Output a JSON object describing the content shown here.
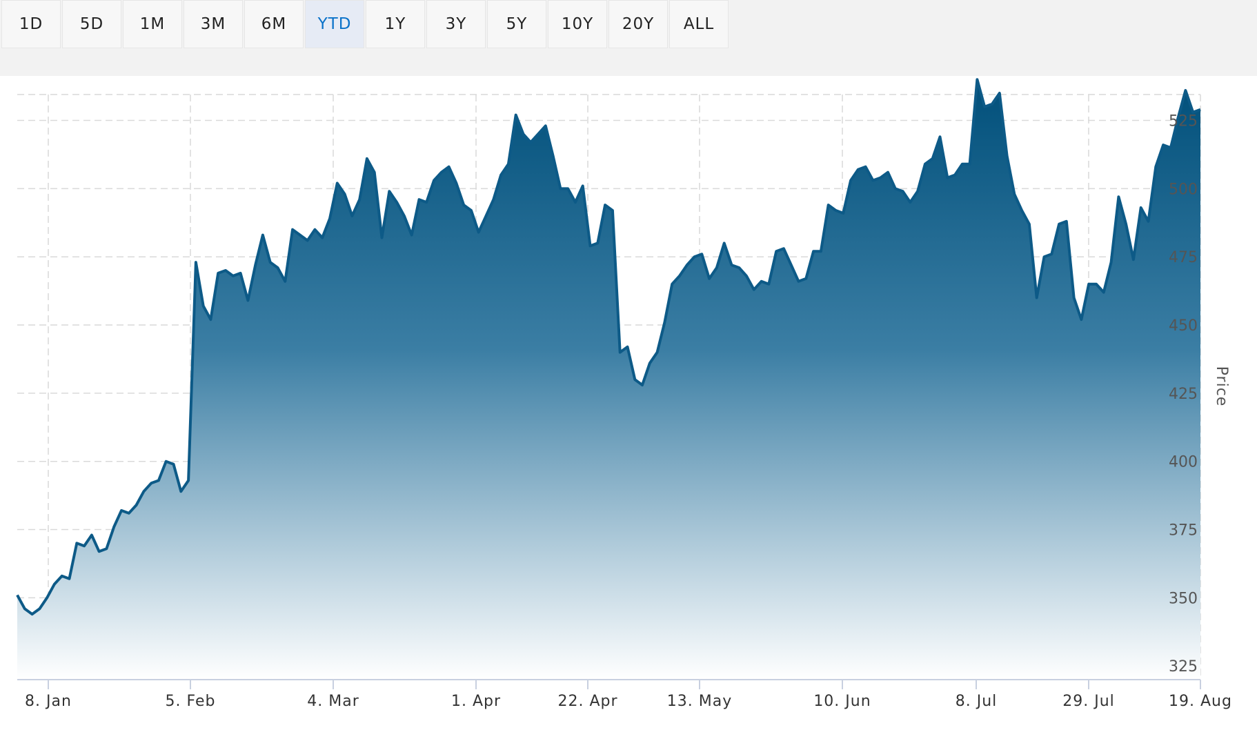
{
  "range_selector": {
    "buttons": [
      "1D",
      "5D",
      "1M",
      "3M",
      "6M",
      "YTD",
      "1Y",
      "3Y",
      "5Y",
      "10Y",
      "20Y",
      "ALL"
    ],
    "selected": "YTD"
  },
  "colors": {
    "line": "#0d5a87",
    "fill_top": "#004f7a",
    "fill_bottom": "#ffffff",
    "selected_text": "#0a72c9",
    "selected_bg": "#e6ebf5"
  },
  "chart_data": {
    "type": "area",
    "ylabel": "Price",
    "ylim": [
      320,
      535
    ],
    "y_ticks": [
      325,
      350,
      375,
      400,
      425,
      450,
      475,
      500,
      525
    ],
    "x_ticks": [
      "8. Jan",
      "5. Feb",
      "4. Mar",
      "1. Apr",
      "22. Apr",
      "13. May",
      "10. Jun",
      "8. Jul",
      "29. Jul",
      "19. Aug"
    ],
    "grid": true,
    "values": [
      351,
      346,
      344,
      346,
      350,
      355,
      358,
      357,
      370,
      369,
      373,
      367,
      368,
      376,
      382,
      381,
      384,
      389,
      392,
      393,
      400,
      399,
      389,
      393,
      473,
      457,
      452,
      469,
      470,
      468,
      469,
      459,
      472,
      483,
      473,
      471,
      466,
      485,
      483,
      481,
      485,
      482,
      489,
      502,
      498,
      490,
      496,
      511,
      506,
      482,
      499,
      495,
      490,
      483,
      496,
      495,
      503,
      506,
      508,
      502,
      494,
      492,
      484,
      490,
      496,
      505,
      509,
      527,
      520,
      517,
      520,
      523,
      512,
      500,
      500,
      495,
      501,
      479,
      480,
      494,
      492,
      440,
      442,
      430,
      428,
      436,
      440,
      451,
      465,
      468,
      472,
      475,
      476,
      467,
      471,
      480,
      472,
      471,
      468,
      463,
      466,
      465,
      477,
      478,
      472,
      466,
      467,
      477,
      477,
      494,
      492,
      491,
      503,
      507,
      508,
      503,
      504,
      506,
      500,
      499,
      495,
      499,
      509,
      511,
      519,
      504,
      505,
      509,
      509,
      540,
      530,
      531,
      535,
      512,
      498,
      492,
      487,
      460,
      475,
      476,
      487,
      488,
      460,
      452,
      465,
      465,
      462,
      473,
      497,
      487,
      474,
      493,
      488,
      508,
      516,
      515,
      526,
      536,
      528,
      529
    ]
  }
}
